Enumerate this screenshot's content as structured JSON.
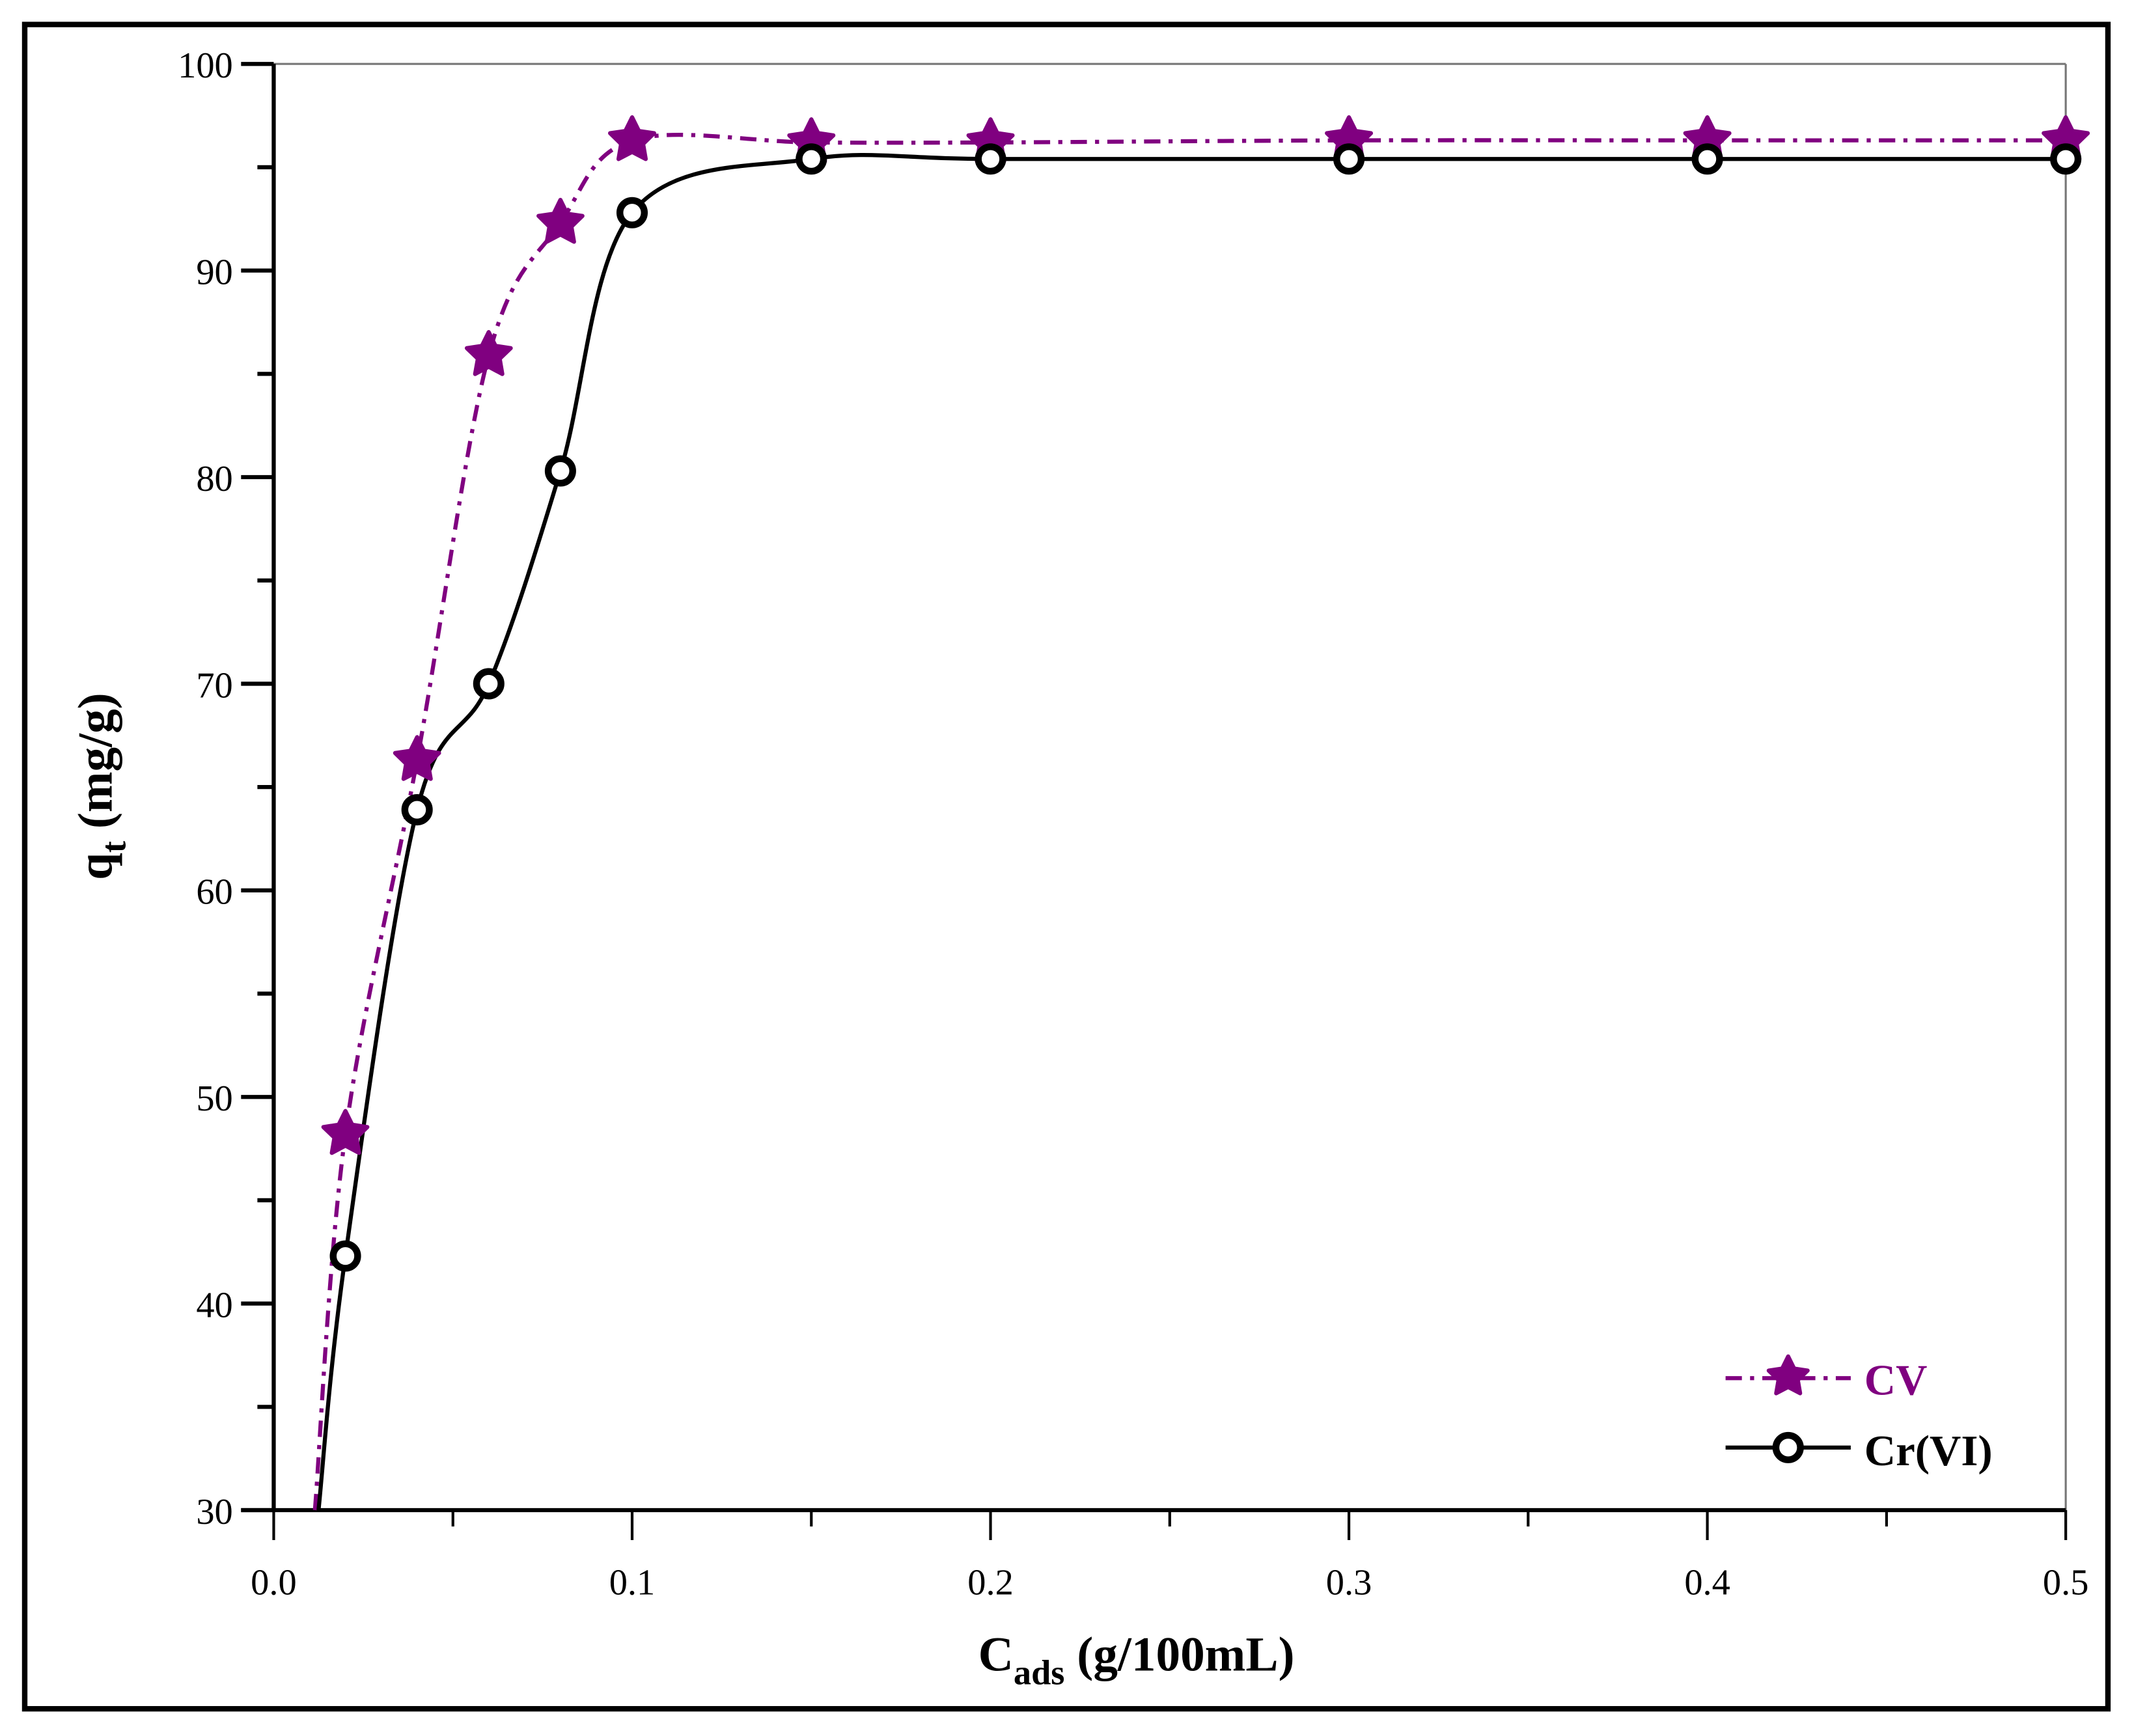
{
  "chart_data": {
    "type": "line",
    "title": "",
    "xlabel": "C_ads (g/100mL)",
    "xlabel_main": "C",
    "xlabel_sub": "ads",
    "xlabel_rest": " (g/100mL)",
    "ylabel": "q_t (mg/g)",
    "ylabel_main": "q",
    "ylabel_sub": "t",
    "ylabel_rest": " (mg/g)",
    "xlim": [
      0.0,
      0.5
    ],
    "ylim": [
      30,
      100
    ],
    "x_ticks": [
      "0.0",
      "0.1",
      "0.2",
      "0.3",
      "0.4",
      "0.5"
    ],
    "y_ticks": [
      "30",
      "40",
      "50",
      "60",
      "70",
      "80",
      "90",
      "100"
    ],
    "grid": false,
    "legend_position": "lower right",
    "x": [
      0.02,
      0.04,
      0.06,
      0.08,
      0.1,
      0.15,
      0.2,
      0.3,
      0.4,
      0.5
    ],
    "series": [
      {
        "name": "CV",
        "color": "#800080",
        "marker": "star",
        "line_style": "dash-dot",
        "values": [
          48.2,
          66.3,
          85.9,
          92.3,
          96.3,
          96.2,
          96.2,
          96.3,
          96.3,
          96.3
        ]
      },
      {
        "name": "Cr(VI)",
        "color": "#000000",
        "marker": "open-circle",
        "line_style": "solid",
        "values": [
          42.3,
          63.9,
          70.0,
          80.3,
          92.8,
          95.4,
          95.4,
          95.4,
          95.4,
          95.4
        ]
      }
    ]
  }
}
